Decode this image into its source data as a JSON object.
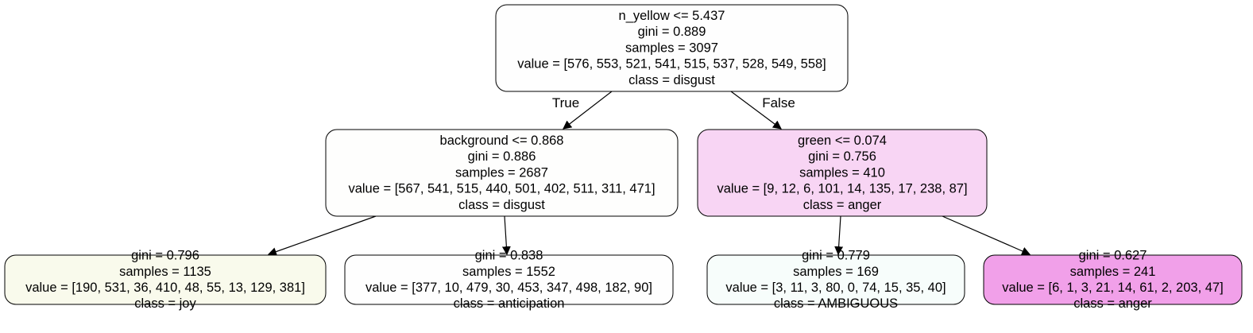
{
  "tree": {
    "nodes": [
      {
        "id": "root",
        "lines": [
          "n_yellow <= 5.437",
          "gini = 0.889",
          "samples = 3097",
          "value = [576, 553, 521, 541, 515, 537, 528, 549, 558]",
          "class = disgust"
        ],
        "fill": "#fefefe"
      },
      {
        "id": "left",
        "lines": [
          "background <= 0.868",
          "gini = 0.886",
          "samples = 2687",
          "value = [567, 541, 515, 440, 501, 402, 511, 311, 471]",
          "class = disgust"
        ],
        "fill": "#fefefd"
      },
      {
        "id": "right",
        "lines": [
          "green <= 0.074",
          "gini = 0.756",
          "samples = 410",
          "value = [9, 12, 6, 101, 14, 135, 17, 238, 87]",
          "class = anger"
        ],
        "fill": "#f8d5f4"
      },
      {
        "id": "leaf1",
        "lines": [
          "gini = 0.796",
          "samples = 1135",
          "value = [190, 531, 36, 410, 48, 55, 13, 129, 381]",
          "class = joy"
        ],
        "fill": "#f9faec"
      },
      {
        "id": "leaf2",
        "lines": [
          "gini = 0.838",
          "samples = 1552",
          "value = [377, 10, 479, 30, 453, 347, 498, 182, 90]",
          "class = anticipation"
        ],
        "fill": "#fefefe"
      },
      {
        "id": "leaf3",
        "lines": [
          "gini = 0.779",
          "samples = 169",
          "value = [3, 11, 3, 80, 0, 74, 15, 35, 40]",
          "class = AMBIGUOUS"
        ],
        "fill": "#f7fdfb"
      },
      {
        "id": "leaf4",
        "lines": [
          "gini = 0.627",
          "samples = 241",
          "value = [6, 1, 3, 21, 14, 61, 2, 203, 47]",
          "class = anger"
        ],
        "fill": "#f1a0e9"
      }
    ],
    "edges": [
      {
        "from": "root",
        "to": "left",
        "label": "True"
      },
      {
        "from": "root",
        "to": "right",
        "label": "False"
      },
      {
        "from": "left",
        "to": "leaf1",
        "label": ""
      },
      {
        "from": "left",
        "to": "leaf2",
        "label": ""
      },
      {
        "from": "right",
        "to": "leaf3",
        "label": ""
      },
      {
        "from": "right",
        "to": "leaf4",
        "label": ""
      }
    ]
  }
}
